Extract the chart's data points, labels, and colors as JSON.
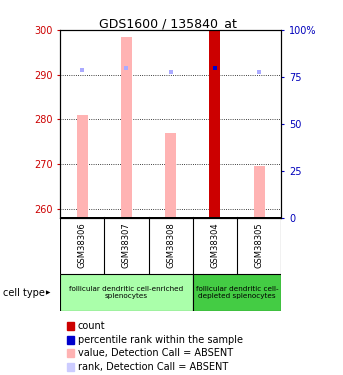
{
  "title": "GDS1600 / 135840_at",
  "samples": [
    "GSM38306",
    "GSM38307",
    "GSM38308",
    "GSM38304",
    "GSM38305"
  ],
  "ylim_left": [
    258,
    300
  ],
  "ylim_right": [
    0,
    100
  ],
  "yticks_left": [
    260,
    270,
    280,
    290,
    300
  ],
  "yticks_right": [
    0,
    25,
    50,
    75,
    100
  ],
  "value_bars": [
    281.0,
    298.5,
    277.0,
    300.0,
    269.5
  ],
  "rank_dots_left": [
    291.0,
    291.5,
    290.5,
    291.5,
    290.5
  ],
  "value_bar_colors": [
    "#ffb3b3",
    "#ffb3b3",
    "#ffb3b3",
    "#cc0000",
    "#ffb3b3"
  ],
  "rank_dot_colors": [
    "#aaaaff",
    "#aaaaff",
    "#aaaaff",
    "#0000cc",
    "#aaaaff"
  ],
  "bar_bottom": 258,
  "bar_width": 0.25,
  "groups": [
    {
      "label": "follicular dendritic cell-enriched\nsplenocytes",
      "samples": [
        0,
        1,
        2
      ],
      "color": "#aaffaa"
    },
    {
      "label": "follicular dendritic cell-\ndepleted splenocytes",
      "samples": [
        3,
        4
      ],
      "color": "#44cc44"
    }
  ],
  "cell_type_label": "cell type",
  "legend_items": [
    {
      "color": "#cc0000",
      "label": "count"
    },
    {
      "color": "#0000cc",
      "label": "percentile rank within the sample"
    },
    {
      "color": "#ffb3b3",
      "label": "value, Detection Call = ABSENT"
    },
    {
      "color": "#ccccff",
      "label": "rank, Detection Call = ABSENT"
    }
  ],
  "background_color": "#ffffff",
  "plot_bg": "#ffffff",
  "left_tick_color": "#cc0000",
  "right_tick_color": "#0000bb",
  "sample_box_color": "#d8d8d8",
  "title_fontsize": 9,
  "tick_fontsize": 7,
  "sample_fontsize": 6,
  "legend_fontsize": 7
}
